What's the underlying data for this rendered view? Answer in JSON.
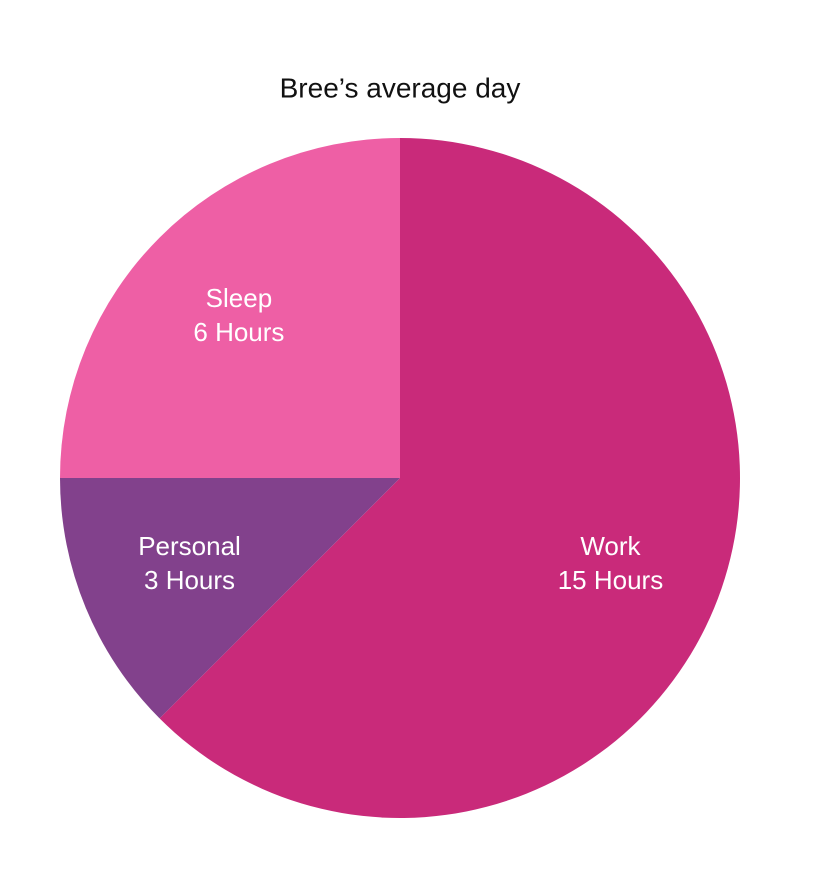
{
  "chart_data": {
    "type": "pie",
    "title": "Bree’s average day",
    "categories": [
      "Work",
      "Personal",
      "Sleep"
    ],
    "values": [
      15,
      3,
      6
    ],
    "value_labels": [
      "15 Hours",
      "3 Hours",
      "6 Hours"
    ],
    "colors": [
      "#c92a7a",
      "#82418c",
      "#ee5fa5"
    ]
  }
}
